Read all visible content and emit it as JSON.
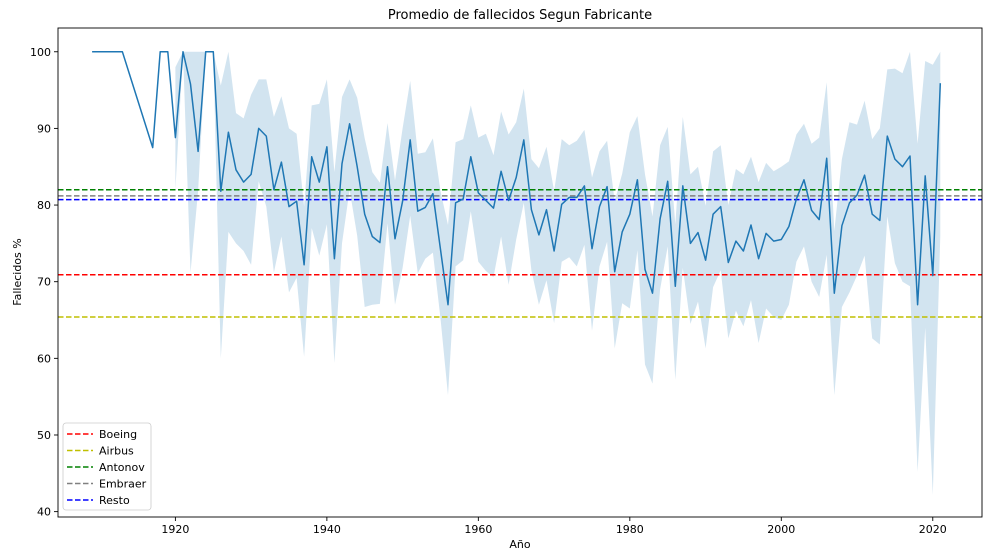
{
  "chart_data": {
    "type": "line",
    "title": "Promedio de fallecidos Segun Fabricante",
    "xlabel": "Año",
    "ylabel": "Fallecidos %",
    "xlim": [
      1904.5,
      2026.5
    ],
    "ylim": [
      39.3,
      103.1
    ],
    "xticks": [
      1920,
      1940,
      1960,
      1980,
      2000,
      2020
    ],
    "yticks": [
      40,
      50,
      60,
      70,
      80,
      90,
      100
    ],
    "grid": false,
    "legend_position": "lower-left",
    "series": [
      {
        "name": "mean",
        "color": "#1f77b4",
        "x": [
          1909,
          1913,
          1917,
          1918,
          1919,
          1920,
          1921,
          1922,
          1923,
          1924,
          1925,
          1926,
          1927,
          1928,
          1929,
          1930,
          1931,
          1932,
          1933,
          1934,
          1935,
          1936,
          1937,
          1938,
          1939,
          1940,
          1941,
          1942,
          1943,
          1944,
          1945,
          1946,
          1947,
          1948,
          1949,
          1950,
          1951,
          1952,
          1953,
          1954,
          1955,
          1956,
          1957,
          1958,
          1959,
          1960,
          1961,
          1962,
          1963,
          1964,
          1965,
          1966,
          1967,
          1968,
          1969,
          1970,
          1971,
          1972,
          1973,
          1974,
          1975,
          1976,
          1977,
          1978,
          1979,
          1980,
          1981,
          1982,
          1983,
          1984,
          1985,
          1986,
          1987,
          1988,
          1989,
          1990,
          1991,
          1992,
          1993,
          1994,
          1995,
          1996,
          1997,
          1998,
          1999,
          2000,
          2001,
          2002,
          2003,
          2004,
          2005,
          2006,
          2007,
          2008,
          2009,
          2010,
          2011,
          2012,
          2013,
          2014,
          2015,
          2016,
          2017,
          2018,
          2019,
          2020,
          2021
        ],
        "y": [
          100,
          100,
          87.5,
          100,
          100,
          88.8,
          100,
          95.8,
          87,
          100,
          100,
          81.8,
          89.5,
          84.6,
          83,
          84,
          90,
          89,
          82,
          85.6,
          79.8,
          80.5,
          72.2,
          86.3,
          83,
          87.6,
          73,
          85.4,
          90.6,
          85,
          78.8,
          75.9,
          75.1,
          85,
          75.6,
          80.5,
          88.5,
          79.2,
          79.7,
          81.5,
          74.2,
          67,
          80.3,
          80.8,
          86.3,
          81.6,
          80.6,
          79.6,
          84.4,
          80.6,
          83.6,
          88.5,
          79.4,
          76.1,
          79.4,
          74,
          80.1,
          81,
          81,
          82.5,
          74.3,
          79.8,
          82.4,
          71.3,
          76.5,
          78.8,
          83.3,
          71.6,
          68.5,
          78.2,
          83.1,
          69.4,
          82.5,
          75,
          76.4,
          72.8,
          78.8,
          79.8,
          72.5,
          75.3,
          74,
          77.4,
          73,
          76.3,
          75.3,
          75.5,
          77.2,
          80.8,
          83.3,
          79.3,
          78.1,
          86.1,
          68.5,
          77.3,
          80.3,
          81.3,
          83.9,
          78.8,
          78,
          89,
          86,
          85,
          86.4,
          67,
          83.8,
          70.8,
          95.9
        ]
      },
      {
        "name": "ci",
        "x": [
          1920,
          1921,
          1922,
          1923,
          1924,
          1925,
          1926,
          1927,
          1928,
          1929,
          1930,
          1931,
          1932,
          1933,
          1934,
          1935,
          1936,
          1937,
          1938,
          1939,
          1940,
          1941,
          1942,
          1943,
          1944,
          1945,
          1946,
          1947,
          1948,
          1949,
          1950,
          1951,
          1952,
          1953,
          1954,
          1955,
          1956,
          1957,
          1958,
          1959,
          1960,
          1961,
          1962,
          1963,
          1964,
          1965,
          1966,
          1967,
          1968,
          1969,
          1970,
          1971,
          1972,
          1973,
          1974,
          1975,
          1976,
          1977,
          1978,
          1979,
          1980,
          1981,
          1982,
          1983,
          1984,
          1985,
          1986,
          1987,
          1988,
          1989,
          1990,
          1991,
          1992,
          1993,
          1994,
          1995,
          1996,
          1997,
          1998,
          1999,
          2000,
          2001,
          2002,
          2003,
          2004,
          2005,
          2006,
          2007,
          2008,
          2009,
          2010,
          2011,
          2012,
          2013,
          2014,
          2015,
          2016,
          2017,
          2018,
          2019,
          2020,
          2021
        ],
        "upper": [
          98,
          100,
          100,
          100,
          100,
          100,
          95.6,
          100,
          92,
          91.3,
          94.4,
          96.4,
          96.4,
          91.5,
          94.2,
          90,
          89.3,
          79.8,
          93,
          93.2,
          96.4,
          84.3,
          94.1,
          96.4,
          94,
          88.7,
          84.3,
          82.9,
          90.7,
          83.2,
          90,
          96.2,
          86.7,
          86.9,
          88.7,
          81.8,
          77.4,
          88.2,
          88.6,
          93,
          88.8,
          89.3,
          86.5,
          92.2,
          89.2,
          90.8,
          95.2,
          86,
          84.8,
          87.6,
          81.8,
          88.6,
          87.8,
          88.4,
          89.8,
          83.6,
          87,
          88.4,
          80.5,
          84.1,
          89.5,
          91.6,
          84,
          78.5,
          87.8,
          90.2,
          77.5,
          91.5,
          84,
          85,
          79.9,
          87,
          87.8,
          80,
          84.7,
          84,
          86.3,
          83,
          85.5,
          84.4,
          85,
          85.7,
          89.2,
          90.6,
          88,
          88.8,
          96,
          76.6,
          86,
          90.8,
          90.5,
          93.6,
          88.6,
          90,
          97.7,
          97.8,
          97.2,
          100,
          88,
          98.8,
          98.3,
          100
        ],
        "lower": [
          82,
          100,
          71.2,
          81.8,
          100,
          100,
          60,
          76.5,
          75,
          74,
          72.2,
          83.1,
          79.8,
          71.2,
          75.9,
          68.6,
          70.5,
          60.2,
          77,
          73.4,
          77.5,
          59.4,
          75,
          82,
          76,
          66.7,
          67,
          67.1,
          77.6,
          67,
          71.8,
          78.6,
          71.1,
          73,
          73.8,
          65.2,
          55.2,
          72,
          72.8,
          79.2,
          72.6,
          71.4,
          70.6,
          75.9,
          69.6,
          75.5,
          80.3,
          71.5,
          67,
          70.2,
          64.6,
          72.6,
          73.2,
          72,
          74.8,
          63.6,
          72,
          75.2,
          61.3,
          67.2,
          66.5,
          74.1,
          59.2,
          56.7,
          69,
          74.6,
          57.2,
          71.8,
          64.5,
          67.4,
          61.3,
          69.3,
          71.5,
          62.6,
          66.2,
          64.2,
          67.6,
          62,
          66.5,
          65.4,
          65,
          67,
          72.6,
          74.6,
          70,
          68,
          73.5,
          55.2,
          66.7,
          68.6,
          70.8,
          73.4,
          62.6,
          61.8,
          78.5,
          72.4,
          70,
          69.4,
          45.2,
          64,
          42.2,
          76
        ]
      }
    ],
    "hlines": [
      {
        "name": "Boeing",
        "y": 70.9,
        "color": "#ff0000"
      },
      {
        "name": "Airbus",
        "y": 65.4,
        "color": "#bfbf00"
      },
      {
        "name": "Antonov",
        "y": 82.0,
        "color": "#008000"
      },
      {
        "name": "Embraer",
        "y": 81.2,
        "color": "#808080"
      },
      {
        "name": "Resto",
        "y": 80.7,
        "color": "#0000ff"
      }
    ],
    "ci_color": "#1f77b4"
  }
}
